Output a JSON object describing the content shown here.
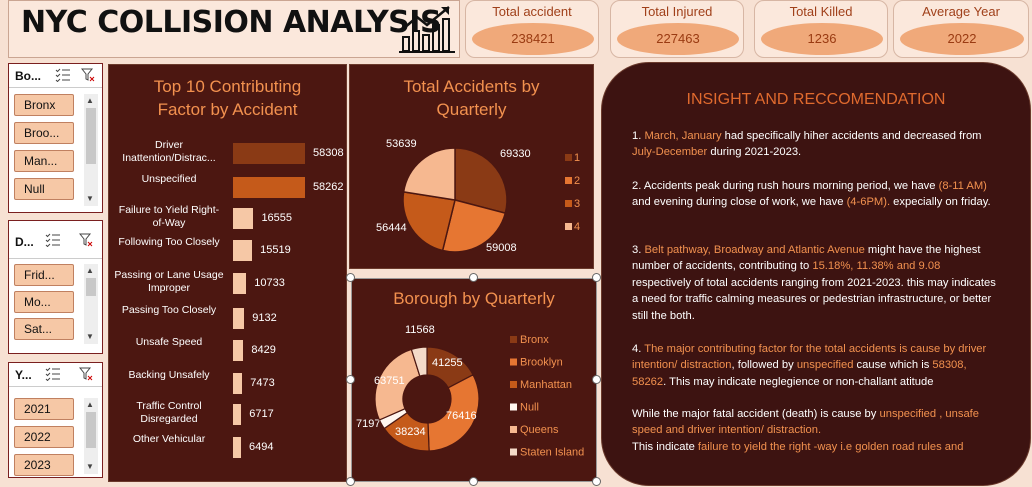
{
  "header": {
    "title": "NYC COLLISION ANALYSIS",
    "icon": "bar-chart-trend-icon"
  },
  "kpis": [
    {
      "label": "Total accident",
      "value": "238421"
    },
    {
      "label": "Total Injured",
      "value": "227463"
    },
    {
      "label": "Total Killed",
      "value": "1236"
    },
    {
      "label": "Average Year",
      "value": "2022"
    }
  ],
  "slicers": {
    "borough": {
      "title": "Bo...",
      "items": [
        "Bronx",
        "Broo...",
        "Man...",
        "Null"
      ]
    },
    "day": {
      "title": "D...",
      "items": [
        "Frid...",
        "Mo...",
        "Sat..."
      ]
    },
    "year": {
      "title": "Y...",
      "items": [
        "2021",
        "2022",
        "2023"
      ]
    }
  },
  "colors": {
    "dark_panel": "#4c1711",
    "accent": "#f2914f",
    "bar_dark": "#8a3a15",
    "bar_mid": "#c55a1a",
    "bar_light": "#f6c8a6"
  },
  "chart_data": [
    {
      "type": "bar",
      "title": "Top 10 Contributing Factor by Accident",
      "categories": [
        "Driver Inattention/Distrac...",
        "Unspecified",
        "Failure to Yield Right-of-Way",
        "Following Too Closely",
        "Passing or Lane Usage Improper",
        "Passing Too Closely",
        "Unsafe Speed",
        "Backing Unsafely",
        "Traffic Control Disregarded",
        "Other Vehicular"
      ],
      "values": [
        58308,
        58262,
        16555,
        15519,
        10733,
        9132,
        8429,
        7473,
        6717,
        6494
      ],
      "orientation": "horizontal"
    },
    {
      "type": "pie",
      "title": "Total Accidents by Quarterly",
      "categories": [
        "1",
        "2",
        "3",
        "4"
      ],
      "values": [
        69330,
        59008,
        56444,
        53639
      ],
      "colors": [
        "#8a3a15",
        "#e67632",
        "#c55a1a",
        "#f6b890"
      ],
      "legend": "right"
    },
    {
      "type": "pie",
      "title": "Borough by Quarterly",
      "categories": [
        "Bronx",
        "Brooklyn",
        "Manhattan",
        "Null",
        "Queens",
        "Staten Island"
      ],
      "values": [
        41255,
        76416,
        38234,
        7197,
        63751,
        11568
      ],
      "colors": [
        "#8a3a15",
        "#e67632",
        "#c55a1a",
        "#fff6ef",
        "#f6b890",
        "#f4dac8"
      ],
      "legend": "right"
    }
  ],
  "insight": {
    "title": "INSIGHT AND RECCOMENDATION",
    "p1": {
      "a": "1. ",
      "b": "March, January",
      "c": " had specifically hiher accidents and decreased from ",
      "d": "July-December",
      "e": " during 2021-2023."
    },
    "p2": {
      "a": "2. Accidents peak during rush hours morning period, we have ",
      "b": "(8-11 AM)",
      "c": " and evening during close of work, we have ",
      "d": "(4-6PM).",
      "e": " expecially on friday."
    },
    "p3": {
      "a": "3. ",
      "b": "Belt pathway, Broadway and Atlantic Avenue",
      "c": " might have the highest number of accidents, contributing to ",
      "d": "15.18%, 11.38% and 9.08",
      "e": " respectively of total accidents ranging from 2021-2023. this may indicates a need for traffic calming measures or pedestrian infrastructure, or better still the both."
    },
    "p4": {
      "a": "4. ",
      "b": "The major contributing factor for the total accidents is cause by driver intention/ distraction",
      "c": ", followed by ",
      "d": "unspecified",
      "e": " cause which is ",
      "f": "58308, 58262",
      "g": ". This may indicate neglegience or non-challant atitude"
    },
    "p5": {
      "a": "While the major fatal accident (death) is cause by ",
      "b": "unspecified , unsafe speed and driver intention/ distraction.",
      "c": "This indicate ",
      "d": "failure to yield the right -way i.e golden road rules and"
    }
  }
}
